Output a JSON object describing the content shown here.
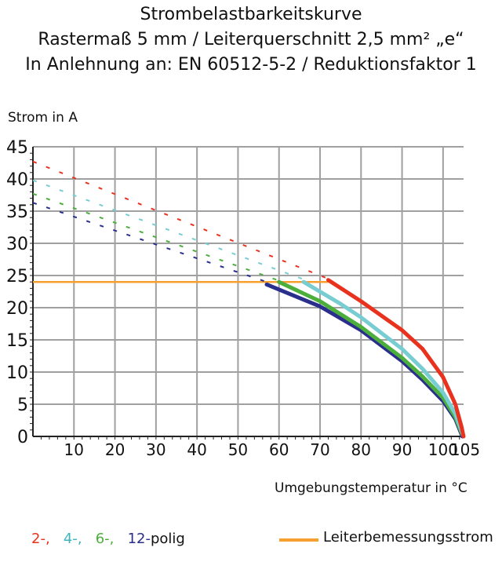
{
  "chart_data": {
    "type": "line",
    "title": "Strombelastbarkeitskurve",
    "subtitle": [
      "Rastermaß 5 mm / Leiterquerschnitt 2,5 mm² „e“",
      "In Anlehnung an: EN 60512-5-2 / Reduktionsfaktor 1"
    ],
    "ylabel": "Strom in A",
    "xlabel": "Umgebungstemperatur in °C",
    "xlim": [
      0,
      105
    ],
    "ylim": [
      0,
      45
    ],
    "xticks": [
      "10",
      "20",
      "30",
      "40",
      "50",
      "60",
      "70",
      "80",
      "90",
      "100",
      "105"
    ],
    "yticks": [
      "0",
      "5",
      "10",
      "15",
      "20",
      "25",
      "30",
      "35",
      "40",
      "45"
    ],
    "grid": true,
    "series": [
      {
        "name": "2-",
        "color": "#e8321e",
        "dashed": [
          [
            0,
            42.7
          ],
          [
            72,
            24.5
          ]
        ],
        "solid": [
          [
            72,
            24.3
          ],
          [
            80,
            21
          ],
          [
            90,
            16.5
          ],
          [
            95,
            13.6
          ],
          [
            100,
            9.2
          ],
          [
            103,
            5
          ],
          [
            104.5,
            1.5
          ],
          [
            105,
            0
          ]
        ]
      },
      {
        "name": "4-",
        "color": "#78cdd2",
        "dashed": [
          [
            0,
            39.8
          ],
          [
            66,
            24.4
          ]
        ],
        "solid": [
          [
            66,
            24
          ],
          [
            75,
            20.6
          ],
          [
            80,
            18.5
          ],
          [
            90,
            13.6
          ],
          [
            95,
            10.5
          ],
          [
            100,
            6.8
          ],
          [
            103,
            3.5
          ],
          [
            104.7,
            0.5
          ]
        ]
      },
      {
        "name": "6-",
        "color": "#4caf3c",
        "dashed": [
          [
            0,
            37.7
          ],
          [
            60,
            24.2
          ]
        ],
        "solid": [
          [
            60,
            24
          ],
          [
            70,
            21
          ],
          [
            80,
            17
          ],
          [
            90,
            12.2
          ],
          [
            95,
            9.3
          ],
          [
            100,
            6
          ],
          [
            103,
            3
          ],
          [
            104.7,
            0.3
          ]
        ]
      },
      {
        "name": "12-",
        "color": "#2a2f8c",
        "dashed": [
          [
            0,
            36.3
          ],
          [
            57,
            24
          ]
        ],
        "solid": [
          [
            57,
            23.6
          ],
          [
            70,
            20.2
          ],
          [
            80,
            16.5
          ],
          [
            90,
            11.7
          ],
          [
            95,
            8.8
          ],
          [
            100,
            5.5
          ],
          [
            103,
            2.7
          ],
          [
            104.7,
            0
          ]
        ]
      }
    ],
    "rated_current": {
      "name": "Leiterbemessungsstrom",
      "color": "#f7a030",
      "points": [
        [
          0,
          24
        ],
        [
          72,
          24
        ]
      ]
    },
    "legend": {
      "suffix": "polig",
      "placement": "bottom"
    }
  }
}
